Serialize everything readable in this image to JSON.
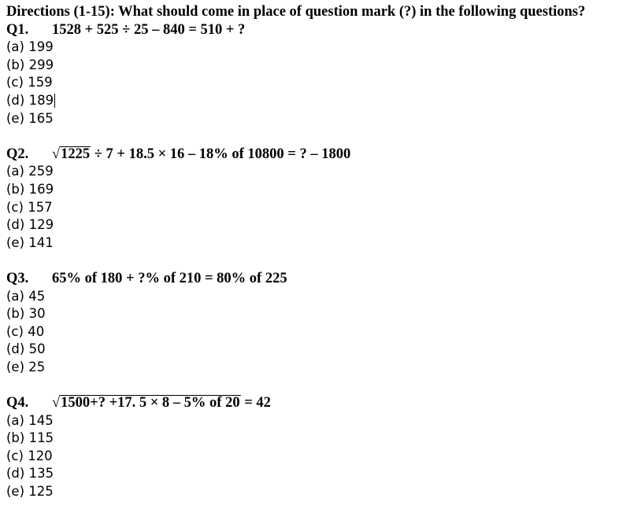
{
  "directions": "Directions (1-15): What should come in place of question mark (?) in the following questions?",
  "questions": [
    {
      "label": "Q1.",
      "radicand": "",
      "expr": "1528 + 525 ÷ 25 – 840 = 510 + ?",
      "options": [
        "(a) 199",
        "(b) 299",
        "(c) 159",
        "(d) 189",
        "(e) 165"
      ]
    },
    {
      "label": "Q2.",
      "radicand": "1225",
      "expr": " ÷ 7 + 18.5 × 16 – 18% of 10800 = ? – 1800",
      "options": [
        "(a) 259",
        "(b) 169",
        "(c) 157",
        "(d) 129",
        "(e) 141"
      ]
    },
    {
      "label": "Q3.",
      "radicand": "",
      "expr": "65% of 180 + ?% of 210 = 80% of 225",
      "options": [
        "(a) 45",
        "(b) 30",
        "(c) 40",
        "(d) 50",
        "(e) 25"
      ]
    },
    {
      "label": "Q4.",
      "radicand": "1500+? +17. 5 × 8 – 5% of 20",
      "expr": " = 42",
      "options": [
        "(a) 145",
        "(b) 115",
        "(c) 120",
        "(d) 135",
        "(e) 125"
      ]
    }
  ]
}
